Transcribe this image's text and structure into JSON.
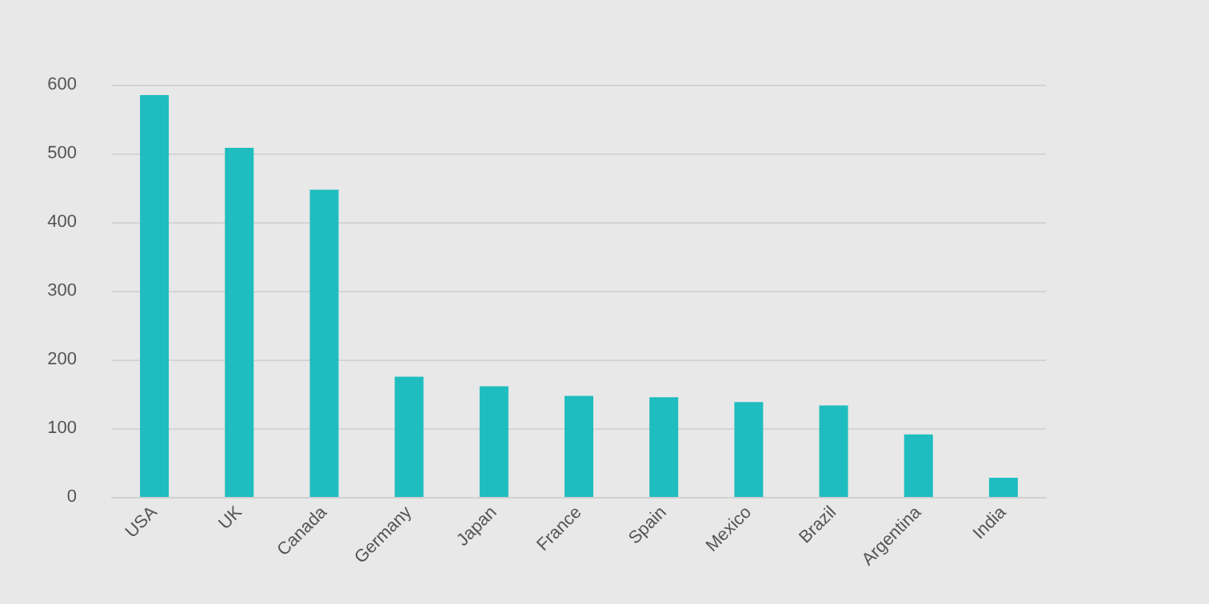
{
  "chart_data": {
    "type": "bar",
    "categories": [
      "USA",
      "UK",
      "Canada",
      "Germany",
      "Japan",
      "France",
      "Spain",
      "Mexico",
      "Brazil",
      "Argentina",
      "India"
    ],
    "values": [
      585,
      508,
      447,
      175,
      161,
      147,
      145,
      138,
      133,
      91,
      28
    ],
    "color": "#1fbdbf",
    "ylim": [
      0,
      600
    ],
    "yticks": [
      0,
      100,
      200,
      300,
      400,
      500,
      600
    ],
    "grid": "y"
  }
}
